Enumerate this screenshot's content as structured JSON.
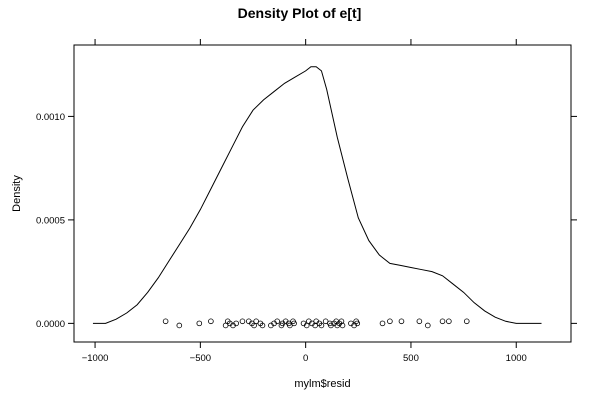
{
  "chart_data": {
    "type": "line",
    "title": "Density Plot of e[t]",
    "xlabel": "mylm$resid",
    "ylabel": "Density",
    "xlim": [
      -1100,
      1260
    ],
    "ylim": [
      -9e-05,
      0.001345
    ],
    "x_ticks": [
      -1000,
      -500,
      0,
      500,
      1000
    ],
    "x_tick_labels": [
      "−1000",
      "−500",
      "0",
      "500",
      "1000"
    ],
    "y_ticks": [
      0.0,
      0.0005,
      0.001
    ],
    "y_tick_labels": [
      "0.0000",
      "0.0005",
      "0.0010"
    ],
    "grid": false,
    "series": [
      {
        "kind": "density-curve",
        "x": [
          -1010,
          -950,
          -900,
          -850,
          -800,
          -750,
          -700,
          -650,
          -600,
          -550,
          -500,
          -450,
          -400,
          -350,
          -300,
          -250,
          -200,
          -150,
          -100,
          -50,
          0,
          25,
          50,
          75,
          100,
          150,
          200,
          250,
          300,
          350,
          400,
          450,
          500,
          550,
          600,
          650,
          700,
          750,
          800,
          850,
          900,
          950,
          1000,
          1050,
          1100,
          1120
        ],
        "y": [
          0.0,
          0.0,
          2e-05,
          5e-05,
          9e-05,
          0.00015,
          0.00022,
          0.0003,
          0.00038,
          0.00046,
          0.00055,
          0.00065,
          0.00075,
          0.00085,
          0.00095,
          0.00103,
          0.00108,
          0.00112,
          0.00116,
          0.00119,
          0.00122,
          0.00124,
          0.00124,
          0.00122,
          0.00113,
          0.0009,
          0.0007,
          0.00051,
          0.0004,
          0.00033,
          0.00029,
          0.00028,
          0.00027,
          0.00026,
          0.00025,
          0.00023,
          0.00019,
          0.00015,
          0.0001,
          6e-05,
          3e-05,
          1e-05,
          0.0,
          0.0,
          0.0,
          0.0
        ]
      },
      {
        "kind": "rug-points",
        "x": [
          -665,
          -600,
          -505,
          -450,
          -380,
          -370,
          -360,
          -345,
          -330,
          -300,
          -270,
          -255,
          -245,
          -235,
          -215,
          -205,
          -165,
          -150,
          -135,
          -115,
          -110,
          -95,
          -80,
          -75,
          -60,
          -55,
          -10,
          5,
          15,
          30,
          45,
          50,
          65,
          75,
          95,
          115,
          120,
          135,
          145,
          150,
          160,
          170,
          175,
          215,
          230,
          240,
          245,
          365,
          400,
          455,
          540,
          580,
          650,
          680,
          765
        ],
        "y": [
          1e-05,
          -1e-05,
          0.0,
          1e-05,
          -1e-05,
          1e-05,
          0.0,
          -1e-05,
          0.0,
          1e-05,
          1e-05,
          0.0,
          -1e-05,
          1e-05,
          0.0,
          -1e-05,
          -1e-05,
          0.0,
          1e-05,
          -1e-05,
          0.0,
          1e-05,
          0.0,
          -1e-05,
          1e-05,
          0.0,
          0.0,
          -1e-05,
          1e-05,
          0.0,
          -1e-05,
          1e-05,
          0.0,
          -1e-05,
          1e-05,
          0.0,
          -1e-05,
          0.0,
          1e-05,
          -1e-05,
          0.0,
          1e-05,
          -1e-05,
          0.0,
          -1e-05,
          1e-05,
          0.0,
          0.0,
          1e-05,
          1e-05,
          1e-05,
          -1e-05,
          1e-05,
          1e-05,
          1e-05
        ]
      }
    ]
  }
}
